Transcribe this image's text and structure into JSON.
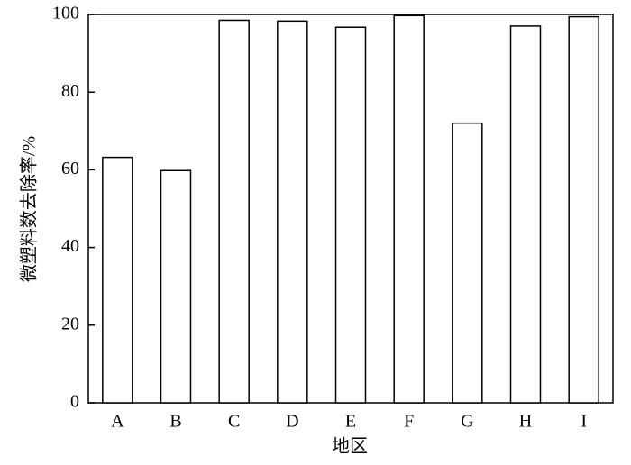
{
  "chart_data": {
    "type": "bar",
    "categories": [
      "A",
      "B",
      "C",
      "D",
      "E",
      "F",
      "G",
      "H",
      "I"
    ],
    "values": [
      63.2,
      59.8,
      98.5,
      98.3,
      96.7,
      99.7,
      72,
      97,
      99.4
    ],
    "color": "#ffffff",
    "xlabel": "地区",
    "ylabel": "微塑料数去除率/%",
    "ylim": [
      0,
      100
    ],
    "yticks": [
      0,
      20,
      40,
      60,
      80,
      100
    ],
    "grid": false
  }
}
